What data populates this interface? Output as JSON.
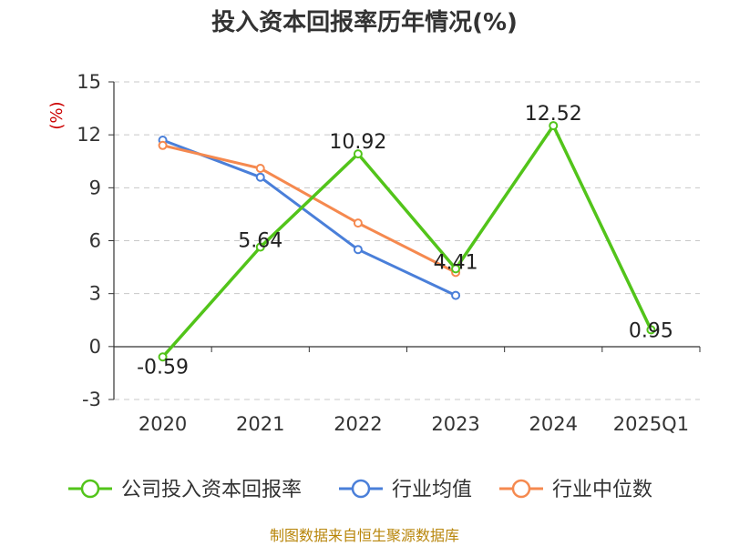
{
  "chart_data": {
    "type": "line",
    "title": "投入资本回报率历年情况(%)",
    "ylabel": "(%)",
    "categories": [
      "2020",
      "2021",
      "2022",
      "2023",
      "2024",
      "2025Q1"
    ],
    "ylim": [
      -3,
      15
    ],
    "yticks": [
      "15",
      "12",
      "9",
      "6",
      "3",
      "0",
      "-3"
    ],
    "ytick_values": [
      15,
      12,
      9,
      6,
      3,
      0,
      -3
    ],
    "grid": true,
    "legend_position": "bottom",
    "series": [
      {
        "name": "公司投入资本回报率",
        "color": "#52c41a",
        "values": [
          -0.59,
          5.64,
          10.92,
          4.41,
          12.52,
          0.95
        ],
        "labels": [
          "-0.59",
          "5.64",
          "10.92",
          "4.41",
          "12.52",
          "0.95"
        ]
      },
      {
        "name": "行业均值",
        "color": "#4a7fd9",
        "values": [
          11.7,
          9.6,
          5.5,
          2.9,
          null,
          null
        ]
      },
      {
        "name": "行业中位数",
        "color": "#f5894f",
        "values": [
          11.4,
          10.1,
          7.0,
          4.2,
          null,
          null
        ]
      }
    ],
    "source": "制图数据来自恒生聚源数据库"
  }
}
